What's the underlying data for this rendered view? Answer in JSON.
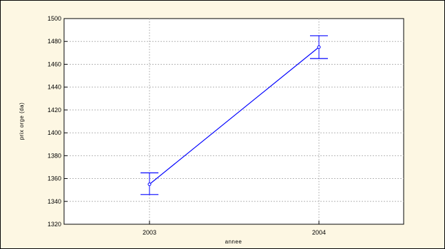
{
  "chart_data": {
    "type": "line",
    "title": "",
    "xlabel": "annee",
    "ylabel": "prix orge (da)",
    "categories": [
      "2003",
      "2004"
    ],
    "series": [
      {
        "values": [
          1355,
          1475
        ],
        "error_low": [
          1346,
          1465
        ],
        "error_high": [
          1365,
          1485
        ],
        "color": "#0000ff"
      }
    ],
    "ylim": [
      1320,
      1500
    ],
    "yticks": [
      1320,
      1340,
      1360,
      1380,
      1400,
      1420,
      1440,
      1460,
      1480,
      1500
    ],
    "grid": true,
    "colors": {
      "background": "#fdf7e3",
      "plot_background": "#ffffff",
      "grid": "#b4b4b4",
      "line": "#0000ff"
    }
  }
}
